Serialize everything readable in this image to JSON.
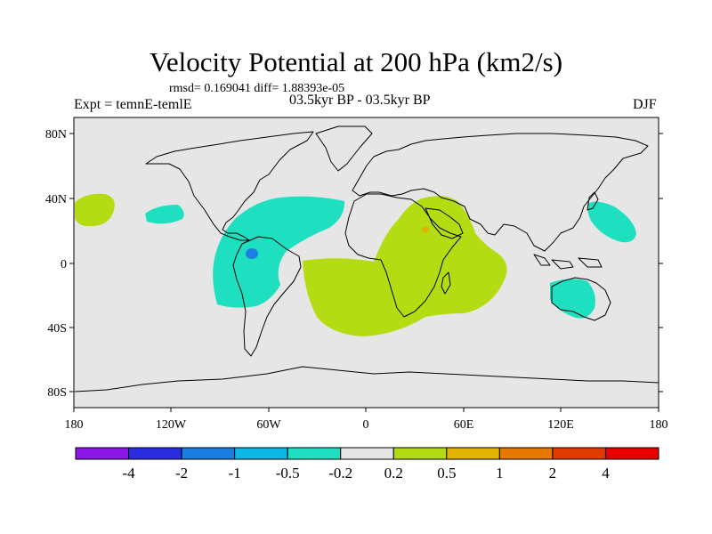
{
  "title": "Velocity Potential at 200 hPa (km2/s)",
  "stats": "rmsd= 0.169041 diff= 1.88393e-05",
  "left_string": "Expt = temnE-temlE",
  "center_string": "03.5kyr BP - 03.5kyr BP",
  "right_string": "DJF",
  "lat_ticks": [
    "80N",
    "40N",
    "0",
    "40S",
    "80S"
  ],
  "lon_ticks": [
    "180",
    "120W",
    "60W",
    "0",
    "60E",
    "120E",
    "180"
  ],
  "colorbar": {
    "labels": [
      "-4",
      "-2",
      "-1",
      "-0.5",
      "-0.2",
      "0.2",
      "0.5",
      "1",
      "2",
      "4"
    ],
    "colors": [
      "#8a17e6",
      "#2c2ce0",
      "#1a7fe0",
      "#0fb6e6",
      "#1ee0c0",
      "#e6e6e6",
      "#b4dc12",
      "#e0b400",
      "#e67a00",
      "#e03a00",
      "#e60000"
    ]
  },
  "map": {
    "ocean_color": "#e6e6e6",
    "positive_color": "#b4dc12",
    "negative_color": "#1ee0c0"
  }
}
